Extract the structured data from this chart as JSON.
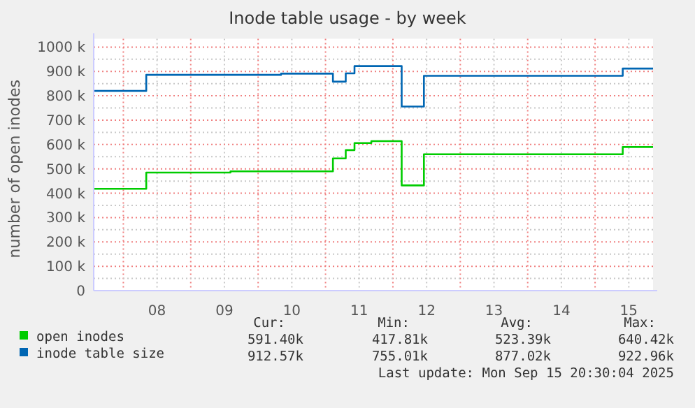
{
  "chart_data": {
    "type": "step",
    "title": "Inode table usage - by week",
    "ylabel": "number of open inodes",
    "xlim": [
      7.56,
      15.86
    ],
    "xticks": [
      {
        "value": 8,
        "label": null
      },
      {
        "value": 8.5,
        "label": "08"
      },
      {
        "value": 9,
        "label": null
      },
      {
        "value": 9.5,
        "label": "09"
      },
      {
        "value": 10,
        "label": null
      },
      {
        "value": 10.5,
        "label": "10"
      },
      {
        "value": 11,
        "label": null
      },
      {
        "value": 11.5,
        "label": "11"
      },
      {
        "value": 12,
        "label": null
      },
      {
        "value": 12.5,
        "label": "12"
      },
      {
        "value": 13,
        "label": null
      },
      {
        "value": 13.5,
        "label": "13"
      },
      {
        "value": 14,
        "label": null
      },
      {
        "value": 14.5,
        "label": "14"
      },
      {
        "value": 15,
        "label": null
      },
      {
        "value": 15.5,
        "label": "15"
      }
    ],
    "ylim": [
      0,
      1000000
    ],
    "yticks": [
      {
        "value": 0,
        "label": "0"
      },
      {
        "value": 50000,
        "label": null
      },
      {
        "value": 100000,
        "label": "100 k"
      },
      {
        "value": 150000,
        "label": null
      },
      {
        "value": 200000,
        "label": "200 k"
      },
      {
        "value": 250000,
        "label": null
      },
      {
        "value": 300000,
        "label": "300 k"
      },
      {
        "value": 350000,
        "label": null
      },
      {
        "value": 400000,
        "label": "400 k"
      },
      {
        "value": 450000,
        "label": null
      },
      {
        "value": 500000,
        "label": "500 k"
      },
      {
        "value": 550000,
        "label": null
      },
      {
        "value": 600000,
        "label": "600 k"
      },
      {
        "value": 650000,
        "label": null
      },
      {
        "value": 700000,
        "label": "700 k"
      },
      {
        "value": 750000,
        "label": null
      },
      {
        "value": 800000,
        "label": "800 k"
      },
      {
        "value": 850000,
        "label": null
      },
      {
        "value": 900000,
        "label": "900 k"
      },
      {
        "value": 950000,
        "label": null
      },
      {
        "value": 1000000,
        "label": "1000 k"
      }
    ],
    "grid": true,
    "legend": "bottom",
    "series": [
      {
        "name": "open inodes",
        "color": "#00cc00",
        "x": [
          7.56,
          8.34,
          9.59,
          11.11,
          11.3,
          11.43,
          11.68,
          12.13,
          12.46,
          15.41,
          15.86
        ],
        "values": [
          418000,
          485000,
          490000,
          543000,
          577000,
          606000,
          614000,
          432000,
          560000,
          590000,
          590000
        ]
      },
      {
        "name": "inode table size",
        "color": "#0066b3",
        "x": [
          7.56,
          8.34,
          10.34,
          11.11,
          11.3,
          11.43,
          12.13,
          12.46,
          15.41,
          15.86
        ],
        "values": [
          820000,
          886000,
          891000,
          858000,
          892000,
          922000,
          756000,
          882000,
          912000,
          912000
        ]
      }
    ],
    "annotations": [
      "Cur:",
      "Min:",
      "Avg:",
      "Max:",
      "591.40k",
      "417.81k",
      "523.39k",
      "640.42k",
      "912.57k",
      "755.01k",
      "877.02k",
      "922.96k",
      "Last update: Mon Sep 15 20:30:04 2025"
    ]
  }
}
